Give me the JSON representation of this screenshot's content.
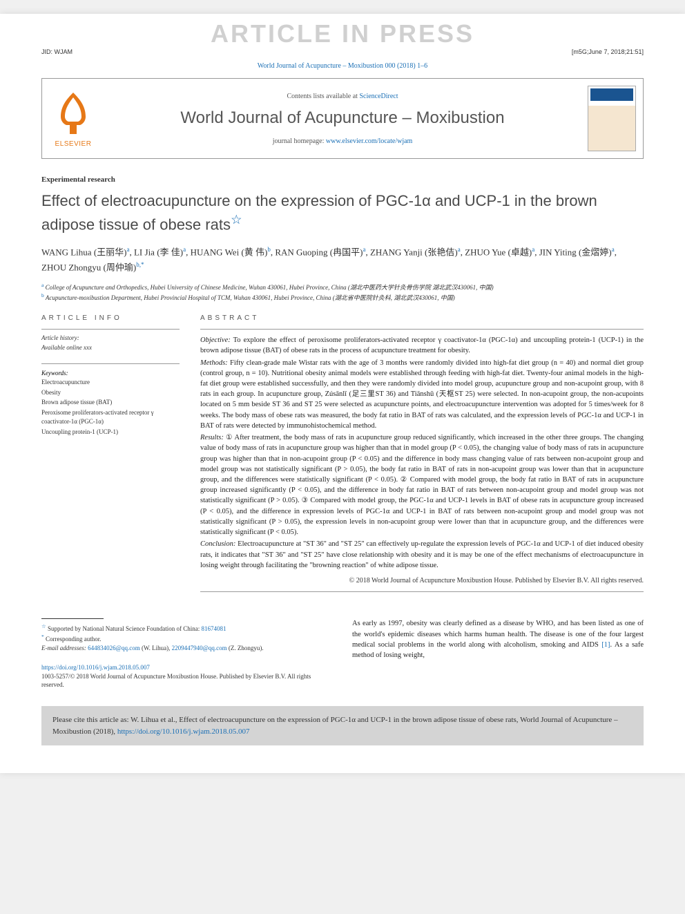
{
  "watermark": "ARTICLE IN PRESS",
  "meta": {
    "jid": "JID: WJAM",
    "stamp": "[m5G;June 7, 2018;21:51]"
  },
  "citation_header": "World Journal of Acupuncture – Moxibustion 000 (2018) 1–6",
  "journal_header": {
    "elsevier_label": "ELSEVIER",
    "contents_prefix": "Contents lists available at ",
    "contents_link": "ScienceDirect",
    "journal_name": "World Journal of Acupuncture – Moxibustion",
    "homepage_prefix": "journal homepage: ",
    "homepage_link": "www.elsevier.com/locate/wjam"
  },
  "article": {
    "type": "Experimental research",
    "title": "Effect of electroacupuncture on the expression of PGC-1α and UCP-1 in the brown adipose tissue of obese rats",
    "authors_html": "WANG Lihua (王丽华)<sup>a</sup>, LI Jia (李 佳)<sup>a</sup>, HUANG Wei (黄 伟)<sup>b</sup>, RAN Guoping (冉国平)<sup>a</sup>, ZHANG Yanji (张艳佶)<sup>a</sup>, ZHUO Yue (卓越)<sup>a</sup>, JIN Yiting (金熠婷)<sup>a</sup>, ZHOU Zhongyu (周仲瑜)<sup>b,*</sup>",
    "affiliations": [
      {
        "sup": "a",
        "text": "College of Acupuncture and Orthopedics, Hubei University of Chinese Medicine, Wuhan 430061, Hubei Province, China (湖北中医药大学针灸骨伤学院 湖北武汉430061, 中国)"
      },
      {
        "sup": "b",
        "text": "Acupuncture-moxibustion Department, Hubei Provincial Hospital of TCM, Wuhan 430061, Hubei Province, China (湖北省中医院针灸科, 湖北武汉430061, 中国)"
      }
    ]
  },
  "article_info": {
    "head": "ARTICLE INFO",
    "history_label": "Article history:",
    "history_text": "Available online xxx",
    "keywords_label": "Keywords:",
    "keywords": [
      "Electroacupuncture",
      "Obesity",
      "Brown adipose tissue (BAT)",
      "Peroxisome proliferators-activated receptor γ coactivator-1α (PGC-1α)",
      "Uncoupling protein-1 (UCP-1)"
    ]
  },
  "abstract": {
    "head": "ABSTRACT",
    "objective_label": "Objective:",
    "objective": "To explore the effect of peroxisome proliferators-activated receptor γ coactivator-1α (PGC-1α) and uncoupling protein-1 (UCP-1) in the brown adipose tissue (BAT) of obese rats in the process of acupuncture treatment for obesity.",
    "methods_label": "Methods:",
    "methods": "Fifty clean-grade male Wistar rats with the age of 3 months were randomly divided into high-fat diet group (n = 40) and normal diet group (control group, n = 10). Nutritional obesity animal models were established through feeding with high-fat diet. Twenty-four animal models in the high-fat diet group were established successfully, and then they were randomly divided into model group, acupuncture group and non-acupoint group, with 8 rats in each group. In acupuncture group, Zúsānlǐ (足三里ST 36) and Tiānshū (天枢ST 25) were selected. In non-acupoint group, the non-acupoints located on 5 mm beside ST 36 and ST 25 were selected as acupuncture points, and electroacupuncture intervention was adopted for 5 times/week for 8 weeks. The body mass of obese rats was measured, the body fat ratio in BAT of rats was calculated, and the expression levels of PGC-1α and UCP-1 in BAT of rats were detected by immunohistochemical method.",
    "results_label": "Results:",
    "results": "① After treatment, the body mass of rats in acupuncture group reduced significantly, which increased in the other three groups. The changing value of body mass of rats in acupuncture group was higher than that in model group (P < 0.05), the changing value of body mass of rats in acupuncture group was higher than that in non-acupoint group (P < 0.05) and the difference in body mass changing value of rats between non-acupoint group and model group was not statistically significant (P > 0.05), the body fat ratio in BAT of rats in non-acupoint group was lower than that in acupuncture group, and the differences were statistically significant (P < 0.05). ② Compared with model group, the body fat ratio in BAT of rats in acupuncture group increased significantly (P < 0.05), and the difference in body fat ratio in BAT of rats between non-acupoint group and model group was not statistically significant (P > 0.05). ③ Compared with model group, the PGC-1α and UCP-1 levels in BAT of obese rats in acupuncture group increased (P < 0.05), and the difference in expression levels of PGC-1α and UCP-1 in BAT of rats between non-acupoint group and model group was not statistically significant (P > 0.05), the expression levels in non-acupoint group were lower than that in acupuncture group, and the differences were statistically significant (P < 0.05).",
    "conclusion_label": "Conclusion:",
    "conclusion": "Electroacupuncture at \"ST 36\" and \"ST 25\" can effectively up-regulate the expression levels of PGC-1α and UCP-1 of diet induced obesity rats, it indicates that \"ST 36\" and \"ST 25\" have close relationship with obesity and it is may be one of the effect mechanisms of electroacupuncture in losing weight through facilitating the \"browning reaction\" of white adipose tissue.",
    "copyright": "© 2018 World Journal of Acupuncture Moxibustion House. Published by Elsevier B.V. All rights reserved."
  },
  "footnotes": {
    "funding_sup": "☆",
    "funding": "Supported by National Natural Science Foundation of China: ",
    "funding_link": "81674081",
    "corresponding_sup": "*",
    "corresponding": "Corresponding author.",
    "email_label": "E-mail addresses:",
    "email1": "644834026@qq.com",
    "email1_name": "(W. Lihua),",
    "email2": "2209447940@qq.com",
    "email2_name": "(Z. Zhongyu)."
  },
  "doi": {
    "link": "https://doi.org/10.1016/j.wjam.2018.05.007",
    "issn": "1003-5257/© 2018 World Journal of Acupuncture Moxibustion House. Published by Elsevier B.V. All rights reserved."
  },
  "intro_text": "As early as 1997, obesity was clearly defined as a disease by WHO, and has been listed as one of the world's epidemic diseases which harms human health. The disease is one of the four largest medical social problems in the world along with alcoholism, smoking and AIDS [1]. As a safe method of losing weight,",
  "intro_ref": "[1]",
  "cite_box": {
    "prefix": "Please cite this article as: W. Lihua et al., Effect of electroacupuncture on the expression of PGC-1α and UCP-1 in the brown adipose tissue of obese rats, World Journal of Acupuncture – Moxibustion (2018), ",
    "link": "https://doi.org/10.1016/j.wjam.2018.05.007"
  },
  "colors": {
    "link": "#1a6fb5",
    "elsevier": "#e67817",
    "text": "#333333",
    "watermark": "#d0d0d0",
    "citebox_bg": "#d4d4d4"
  }
}
